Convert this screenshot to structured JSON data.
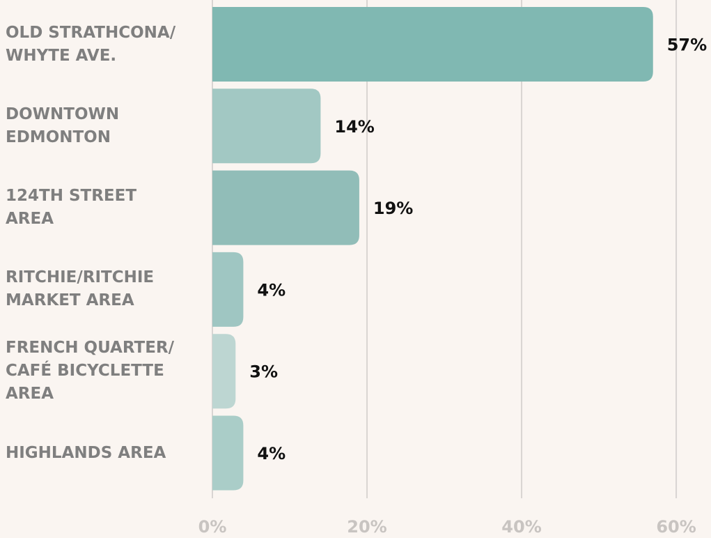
{
  "chart_data": {
    "type": "bar",
    "orientation": "horizontal",
    "categories": [
      "OLD STRATHCONA/\nWHYTE AVE.",
      "DOWNTOWN\nEDMONTON",
      "124TH STREET\nAREA",
      "RITCHIE/RITCHIE\nMARKET AREA",
      "FRENCH QUARTER/\nCAFÉ BICYCLETTE\nAREA",
      "HIGHLANDS AREA"
    ],
    "values": [
      57,
      14,
      19,
      4,
      3,
      4
    ],
    "value_labels": [
      "57%",
      "14%",
      "19%",
      "4%",
      "3%",
      "4%"
    ],
    "colors": [
      "#80b8b2",
      "#a2c8c3",
      "#91bdb8",
      "#9fc6c2",
      "#bdd6d2",
      "#aacdc8"
    ],
    "xlim": [
      0,
      64.5
    ],
    "xticks": [
      {
        "value": 0,
        "label": "0%"
      },
      {
        "value": 20,
        "label": "20%"
      },
      {
        "value": 40,
        "label": "40%"
      },
      {
        "value": 60,
        "label": "60%"
      }
    ],
    "grid": true
  }
}
